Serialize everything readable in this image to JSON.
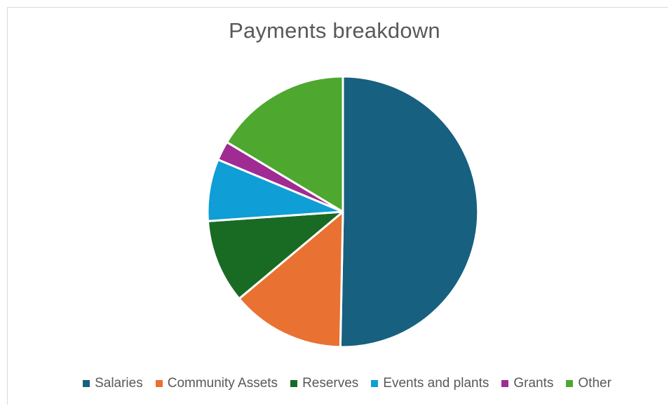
{
  "chart_data": {
    "type": "pie",
    "title": "Payments breakdown",
    "categories": [
      "Salaries",
      "Community Assets",
      "Reserves",
      "Events and plants",
      "Grants",
      "Other"
    ],
    "values": [
      50.3,
      13.6,
      10.0,
      7.4,
      2.3,
      16.4
    ],
    "colors": [
      "#17607f",
      "#e97132",
      "#196b24",
      "#0f9ed5",
      "#a02b93",
      "#4ea72e"
    ],
    "start_angle_deg": 0,
    "direction": "clockwise",
    "legend_position": "bottom",
    "slice_border_color": "#ffffff"
  }
}
